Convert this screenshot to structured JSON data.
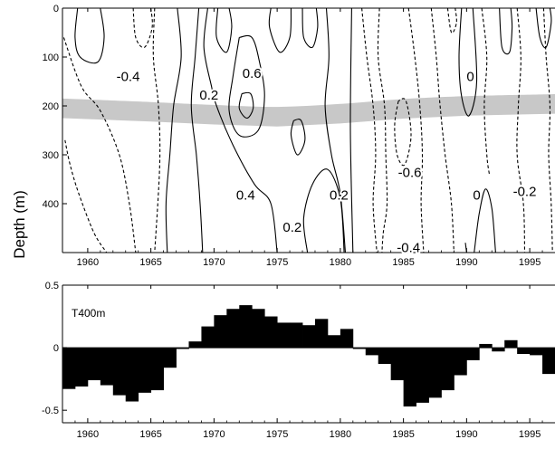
{
  "chart_data": [
    {
      "type": "contour",
      "ylabel": "Depth (m)",
      "xlim": [
        1958,
        1997
      ],
      "ylim": [
        500,
        0
      ],
      "xticks": [
        1960,
        1965,
        1970,
        1975,
        1980,
        1985,
        1990,
        1995
      ],
      "xtick_labels": [
        "1960",
        "1965",
        "1970",
        "1975",
        "1980",
        "1985",
        "1990",
        "1995"
      ],
      "yticks": [
        0,
        100,
        200,
        300,
        400
      ],
      "ytick_labels": [
        "0",
        "100",
        "200",
        "300",
        "400"
      ],
      "shaded_band": {
        "fill": "#c8c8c8",
        "depth_center": [
          [
            1958,
            205
          ],
          [
            1965,
            212
          ],
          [
            1970,
            218
          ],
          [
            1975,
            222
          ],
          [
            1980,
            216
          ],
          [
            1985,
            206
          ],
          [
            1990,
            200
          ],
          [
            1997,
            196
          ]
        ],
        "half_width": 20
      },
      "contour_labels": [
        {
          "text": "-0.4",
          "x": 1963.2,
          "y": 140
        },
        {
          "text": "0.2",
          "x": 1969.6,
          "y": 178
        },
        {
          "text": "0.6",
          "x": 1973.0,
          "y": 133
        },
        {
          "text": "0.4",
          "x": 1972.5,
          "y": 382
        },
        {
          "text": "0.2",
          "x": 1976.2,
          "y": 448
        },
        {
          "text": "0.2",
          "x": 1979.9,
          "y": 382
        },
        {
          "text": "-0.6",
          "x": 1985.5,
          "y": 336
        },
        {
          "text": "0",
          "x": 1990.3,
          "y": 140
        },
        {
          "text": "-0.4",
          "x": 1985.4,
          "y": 490
        },
        {
          "text": "0",
          "x": 1990.8,
          "y": 382
        },
        {
          "text": "-0.2",
          "x": 1994.6,
          "y": 375
        }
      ],
      "contours": [
        {
          "style": "solid",
          "points": [
            [
              1959.2,
              0
            ],
            [
              1959.0,
              60
            ],
            [
              1959.4,
              100
            ],
            [
              1960.8,
              110
            ],
            [
              1961.3,
              60
            ],
            [
              1961.0,
              0
            ]
          ]
        },
        {
          "style": "dashed",
          "points": [
            [
              1958.1,
              60
            ],
            [
              1959.5,
              160
            ],
            [
              1961.0,
              210
            ],
            [
              1962.5,
              300
            ],
            [
              1963.3,
              400
            ],
            [
              1963.8,
              500
            ]
          ]
        },
        {
          "style": "dashed",
          "points": [
            [
              1963.6,
              0
            ],
            [
              1963.8,
              60
            ],
            [
              1964.5,
              80
            ],
            [
              1965.1,
              40
            ],
            [
              1965.0,
              0
            ]
          ]
        },
        {
          "style": "dashed",
          "points": [
            [
              1958.2,
              270
            ],
            [
              1958.6,
              320
            ],
            [
              1959.3,
              380
            ],
            [
              1960.5,
              460
            ],
            [
              1961.5,
              500
            ]
          ]
        },
        {
          "style": "dashed",
          "points": [
            [
              1965.3,
              0
            ],
            [
              1965.2,
              100
            ],
            [
              1965.6,
              200
            ],
            [
              1965.7,
              320
            ],
            [
              1965.3,
              500
            ]
          ]
        },
        {
          "style": "solid",
          "points": [
            [
              1966.3,
              500
            ],
            [
              1966.2,
              400
            ],
            [
              1966.5,
              300
            ],
            [
              1966.8,
              200
            ],
            [
              1967.4,
              100
            ],
            [
              1967.1,
              0
            ]
          ]
        },
        {
          "style": "solid",
          "points": [
            [
              1968.8,
              0
            ],
            [
              1968.5,
              100
            ],
            [
              1968.2,
              200
            ],
            [
              1968.6,
              300
            ],
            [
              1968.9,
              400
            ],
            [
              1969.1,
              500
            ]
          ]
        },
        {
          "style": "solid",
          "points": [
            [
              1969.5,
              0
            ],
            [
              1969.2,
              80
            ],
            [
              1969.8,
              160
            ],
            [
              1970.2,
              200
            ],
            [
              1971.5,
              280
            ],
            [
              1973.2,
              360
            ],
            [
              1974.5,
              400
            ],
            [
              1975.0,
              500
            ]
          ]
        },
        {
          "style": "solid",
          "points": [
            [
              1970.3,
              0
            ],
            [
              1970.2,
              60
            ],
            [
              1971.0,
              90
            ],
            [
              1971.4,
              40
            ],
            [
              1971.2,
              0
            ]
          ]
        },
        {
          "style": "solid",
          "points": [
            [
              1972.0,
              60
            ],
            [
              1971.5,
              140
            ],
            [
              1971.2,
              210
            ],
            [
              1972.0,
              260
            ],
            [
              1973.5,
              250
            ],
            [
              1974.0,
              180
            ],
            [
              1973.6,
              110
            ],
            [
              1973.0,
              60
            ],
            [
              1972.0,
              60
            ]
          ]
        },
        {
          "style": "solid",
          "points": [
            [
              1972.2,
              175
            ],
            [
              1972.0,
              205
            ],
            [
              1972.6,
              225
            ],
            [
              1973.1,
              205
            ],
            [
              1972.9,
              175
            ],
            [
              1972.2,
              175
            ]
          ]
        },
        {
          "style": "solid",
          "points": [
            [
              1974.5,
              0
            ],
            [
              1974.4,
              40
            ],
            [
              1975.2,
              90
            ],
            [
              1976.0,
              60
            ],
            [
              1976.1,
              0
            ]
          ]
        },
        {
          "style": "solid",
          "points": [
            [
              1977.0,
              0
            ],
            [
              1977.1,
              60
            ],
            [
              1977.8,
              80
            ],
            [
              1978.2,
              40
            ],
            [
              1978.1,
              0
            ]
          ]
        },
        {
          "style": "solid",
          "points": [
            [
              1976.3,
              230
            ],
            [
              1976.1,
              260
            ],
            [
              1976.6,
              300
            ],
            [
              1977.2,
              270
            ],
            [
              1976.9,
              230
            ],
            [
              1976.3,
              230
            ]
          ]
        },
        {
          "style": "solid",
          "points": [
            [
              1977.4,
              500
            ],
            [
              1977.1,
              430
            ],
            [
              1977.8,
              360
            ],
            [
              1979.0,
              330
            ],
            [
              1980.0,
              390
            ],
            [
              1980.3,
              500
            ]
          ]
        },
        {
          "style": "solid",
          "points": [
            [
              1978.9,
              0
            ],
            [
              1979.1,
              100
            ],
            [
              1978.8,
              200
            ],
            [
              1979.3,
              300
            ],
            [
              1980.0,
              380
            ],
            [
              1980.4,
              500
            ]
          ]
        },
        {
          "style": "solid",
          "points": [
            [
              1980.9,
              0
            ],
            [
              1980.8,
              250
            ],
            [
              1981.0,
              500
            ]
          ]
        },
        {
          "style": "dashed",
          "points": [
            [
              1981.7,
              0
            ],
            [
              1982.1,
              100
            ],
            [
              1982.6,
              200
            ],
            [
              1982.8,
              300
            ],
            [
              1982.6,
              400
            ],
            [
              1982.9,
              500
            ]
          ]
        },
        {
          "style": "dashed",
          "points": [
            [
              1983.1,
              0
            ],
            [
              1983.0,
              100
            ],
            [
              1983.5,
              200
            ],
            [
              1983.6,
              300
            ],
            [
              1983.7,
              400
            ],
            [
              1983.4,
              460
            ],
            [
              1983.3,
              500
            ]
          ]
        },
        {
          "style": "dashed",
          "points": [
            [
              1984.6,
              190
            ],
            [
              1984.3,
              240
            ],
            [
              1984.5,
              300
            ],
            [
              1985.1,
              320
            ],
            [
              1985.6,
              260
            ],
            [
              1985.2,
              190
            ],
            [
              1984.6,
              190
            ]
          ]
        },
        {
          "style": "dashed",
          "points": [
            [
              1985.4,
              0
            ],
            [
              1985.9,
              100
            ],
            [
              1986.3,
              200
            ],
            [
              1986.5,
              300
            ],
            [
              1986.4,
              400
            ],
            [
              1986.6,
              500
            ]
          ]
        },
        {
          "style": "dashed",
          "points": [
            [
              1987.2,
              0
            ],
            [
              1987.6,
              100
            ],
            [
              1987.9,
              200
            ],
            [
              1988.3,
              300
            ],
            [
              1988.8,
              400
            ],
            [
              1989.0,
              500
            ]
          ]
        },
        {
          "style": "solid",
          "points": [
            [
              1989.6,
              0
            ],
            [
              1989.4,
              100
            ],
            [
              1989.6,
              180
            ],
            [
              1990.2,
              220
            ],
            [
              1990.8,
              150
            ],
            [
              1990.5,
              0
            ]
          ]
        },
        {
          "style": "dashed",
          "points": [
            [
              1988.5,
              0
            ],
            [
              1988.8,
              50
            ],
            [
              1989.2,
              30
            ],
            [
              1989.1,
              0
            ]
          ]
        },
        {
          "style": "solid",
          "points": [
            [
              1989.9,
              480
            ],
            [
              1990.0,
              500
            ]
          ]
        },
        {
          "style": "solid",
          "points": [
            [
              1990.6,
              500
            ],
            [
              1991.0,
              420
            ],
            [
              1991.5,
              370
            ],
            [
              1992.0,
              410
            ],
            [
              1992.3,
              500
            ]
          ]
        },
        {
          "style": "dashed",
          "points": [
            [
              1991.2,
              0
            ],
            [
              1991.6,
              100
            ],
            [
              1991.4,
              200
            ],
            [
              1991.6,
              300
            ],
            [
              1991.8,
              340
            ]
          ]
        },
        {
          "style": "solid",
          "points": [
            [
              1992.6,
              0
            ],
            [
              1992.8,
              80
            ],
            [
              1993.4,
              90
            ],
            [
              1993.6,
              40
            ],
            [
              1993.5,
              0
            ]
          ]
        },
        {
          "style": "dashed",
          "points": [
            [
              1994.0,
              0
            ],
            [
              1994.3,
              100
            ],
            [
              1994.1,
              200
            ],
            [
              1994.0,
              300
            ],
            [
              1994.5,
              400
            ],
            [
              1994.6,
              500
            ]
          ]
        },
        {
          "style": "dashed",
          "points": [
            [
              1996.1,
              0
            ],
            [
              1996.3,
              100
            ],
            [
              1996.6,
              200
            ],
            [
              1996.5,
              300
            ],
            [
              1996.7,
              400
            ],
            [
              1996.8,
              500
            ]
          ]
        },
        {
          "style": "solid",
          "points": [
            [
              1995.5,
              0
            ],
            [
              1995.8,
              60
            ],
            [
              1996.3,
              80
            ],
            [
              1996.7,
              30
            ],
            [
              1996.6,
              0
            ]
          ]
        }
      ]
    },
    {
      "type": "bar",
      "title": "T400m",
      "xlim": [
        1958,
        1997
      ],
      "ylim": [
        -0.6,
        0.5
      ],
      "xticks": [
        1960,
        1965,
        1970,
        1975,
        1980,
        1985,
        1990,
        1995
      ],
      "xtick_labels": [
        "1960",
        "1965",
        "1970",
        "1975",
        "1980",
        "1985",
        "1990",
        "1995"
      ],
      "yticks": [
        0.5,
        0,
        -0.5
      ],
      "ytick_labels": [
        "0.5",
        "0",
        "-0.5"
      ],
      "bar_width": 1,
      "x": [
        1958,
        1959,
        1960,
        1961,
        1962,
        1963,
        1964,
        1965,
        1966,
        1967,
        1968,
        1969,
        1970,
        1971,
        1972,
        1973,
        1974,
        1975,
        1976,
        1977,
        1978,
        1979,
        1980,
        1981,
        1982,
        1983,
        1984,
        1985,
        1986,
        1987,
        1988,
        1989,
        1990,
        1991,
        1992,
        1993,
        1994,
        1995,
        1996
      ],
      "values": [
        -0.33,
        -0.31,
        -0.26,
        -0.3,
        -0.38,
        -0.43,
        -0.36,
        -0.34,
        -0.16,
        -0.01,
        0.05,
        0.17,
        0.26,
        0.31,
        0.34,
        0.31,
        0.25,
        0.2,
        0.2,
        0.18,
        0.23,
        0.1,
        0.15,
        -0.01,
        -0.06,
        -0.13,
        -0.26,
        -0.47,
        -0.44,
        -0.4,
        -0.34,
        -0.22,
        -0.1,
        0.03,
        -0.03,
        0.06,
        -0.05,
        -0.06,
        -0.21
      ]
    }
  ]
}
